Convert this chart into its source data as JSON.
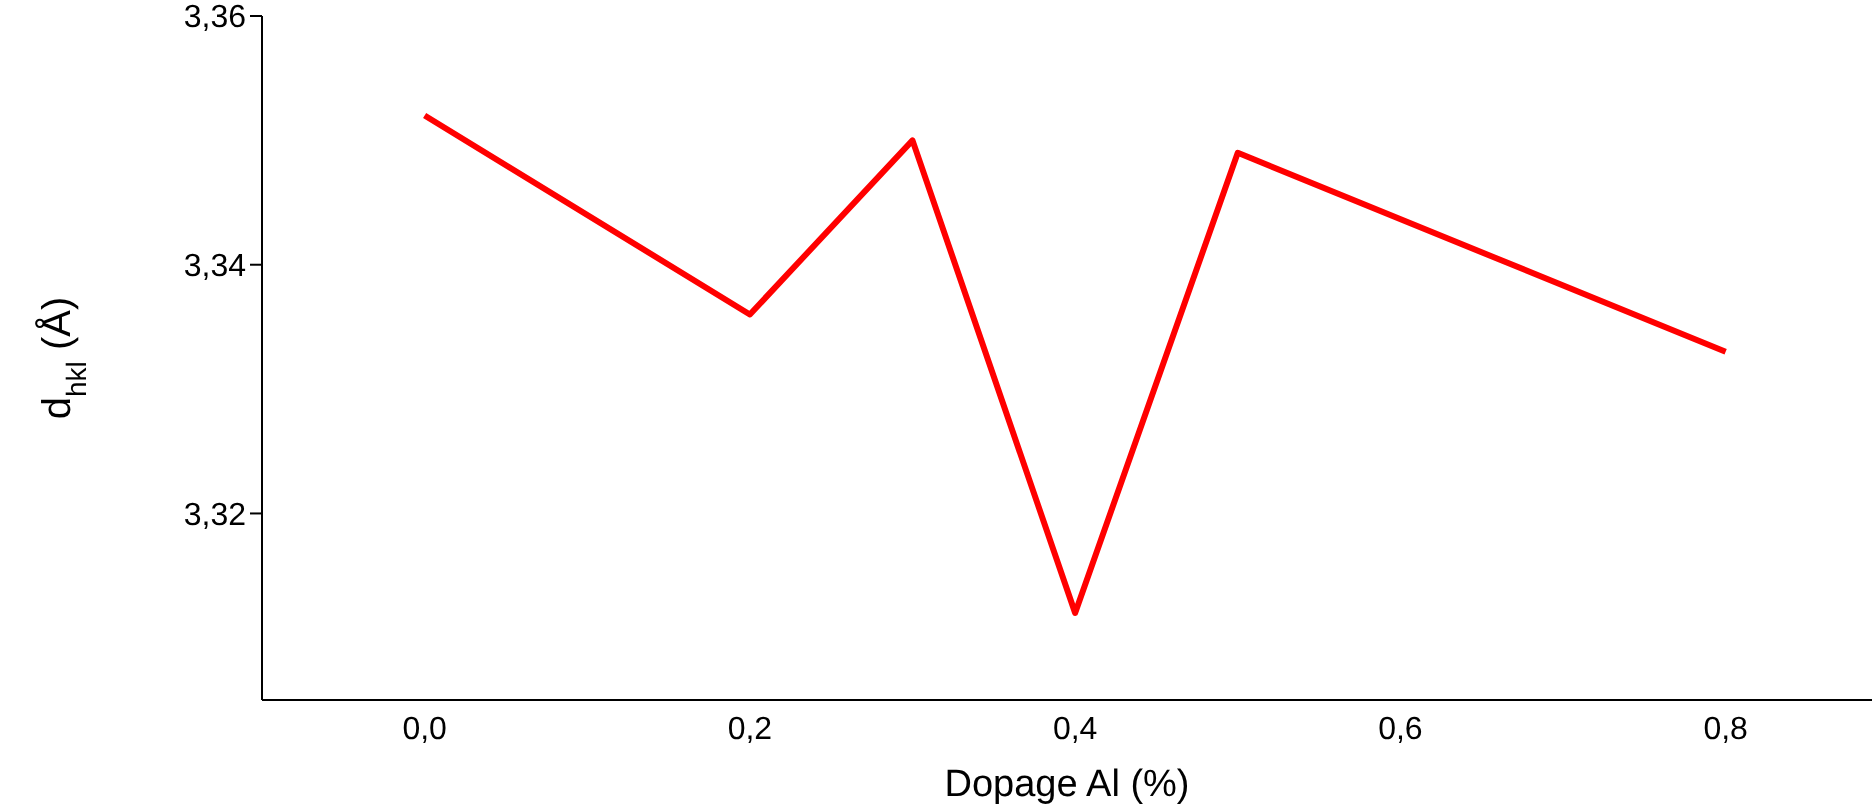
{
  "chart_data": {
    "type": "line",
    "xlabel": "Dopage Al (%)",
    "ylabel": "d$_{hkl}$ (Å)",
    "x": [
      0,
      0.2,
      0.3,
      0.4,
      0.5,
      0.8
    ],
    "series": [
      {
        "color": "#ff0000",
        "values": [
          3.352,
          3.336,
          3.35,
          3.312,
          3.349,
          3.333
        ]
      }
    ],
    "xlim": [
      -0.1,
      0.89
    ],
    "ylim": [
      3.305,
      3.36
    ],
    "xticks": [
      {
        "value": 0,
        "label": "0,0"
      },
      {
        "value": 0.2,
        "label": "0,2"
      },
      {
        "value": 0.4,
        "label": "0,4"
      },
      {
        "value": 0.6,
        "label": "0,6"
      },
      {
        "value": 0.8,
        "label": "0,8"
      }
    ],
    "yticks": [
      {
        "value": 3.32,
        "label": "3,32"
      },
      {
        "value": 3.34,
        "label": "3,34"
      },
      {
        "value": 3.36,
        "label": "3,36"
      }
    ],
    "grid": false,
    "legend": false,
    "marker": "none",
    "line_style": "solid"
  }
}
